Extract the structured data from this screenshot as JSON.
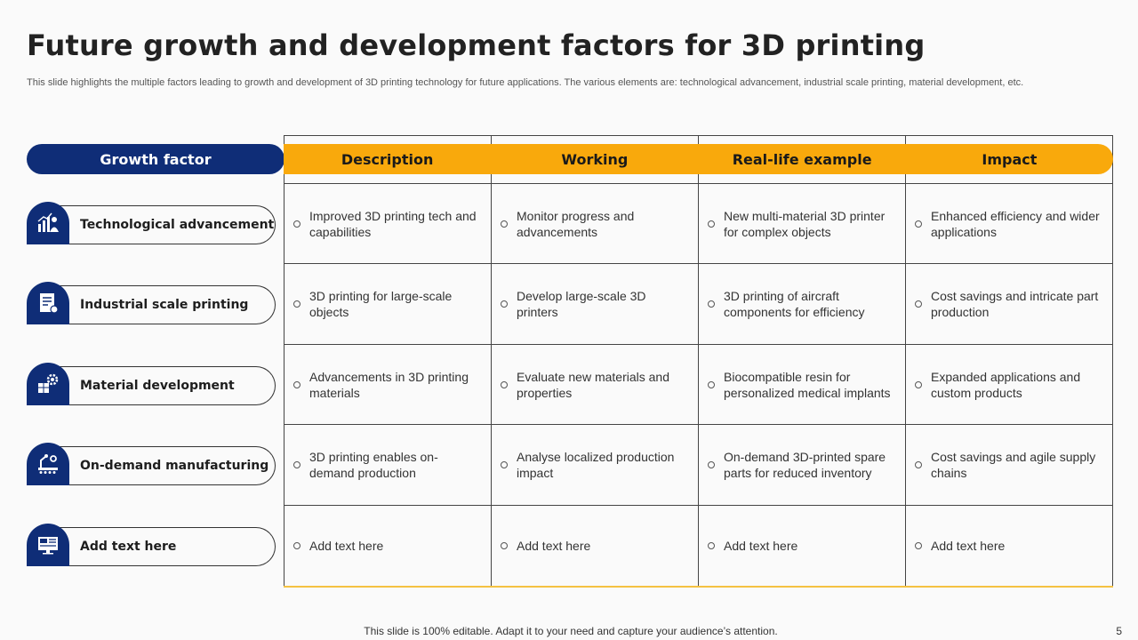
{
  "title": "Future growth and development factors for 3D printing",
  "subtitle": "This slide highlights the multiple factors leading to growth and development of 3D printing technology for future applications. The various elements are: technological advancement, industrial scale printing, material development, etc.",
  "table": {
    "first_header": "Growth factor",
    "headers": [
      "Description",
      "Working",
      "Real-life example",
      "Impact"
    ],
    "rows": [
      {
        "factor": "Technological advancement",
        "icon": "growth-chart-person-icon",
        "cells": [
          "Improved 3D printing tech and capabilities",
          "Monitor progress and advancements",
          "New multi-material 3D printer for complex objects",
          "Enhanced efficiency and wider applications"
        ]
      },
      {
        "factor": "Industrial scale printing",
        "icon": "blueprint-document-icon",
        "cells": [
          "3D printing for large-scale objects",
          "Develop large-scale 3D printers",
          "3D printing of aircraft components for efficiency",
          "Cost savings and intricate part production"
        ]
      },
      {
        "factor": "Material development",
        "icon": "gear-cube-icon",
        "cells": [
          "Advancements in 3D printing materials",
          "Evaluate new materials and properties",
          "Biocompatible resin for personalized medical implants",
          "Expanded applications and custom products"
        ]
      },
      {
        "factor": "On-demand manufacturing",
        "icon": "robotic-arm-conveyor-icon",
        "cells": [
          "3D printing enables on-demand production",
          "Analyse localized production impact",
          "On-demand 3D-printed spare parts for reduced inventory",
          "Cost savings and agile supply chains"
        ]
      },
      {
        "factor": "Add text here",
        "icon": "monitor-dashboard-icon",
        "cells": [
          "Add text here",
          "Add text here",
          "Add text here",
          "Add text here"
        ]
      }
    ]
  },
  "footer": "This slide is 100% editable. Adapt it to your need and capture your audience’s attention.",
  "page_number": "5",
  "colors": {
    "navy": "#0f2d77",
    "amber": "#f9a90c"
  }
}
